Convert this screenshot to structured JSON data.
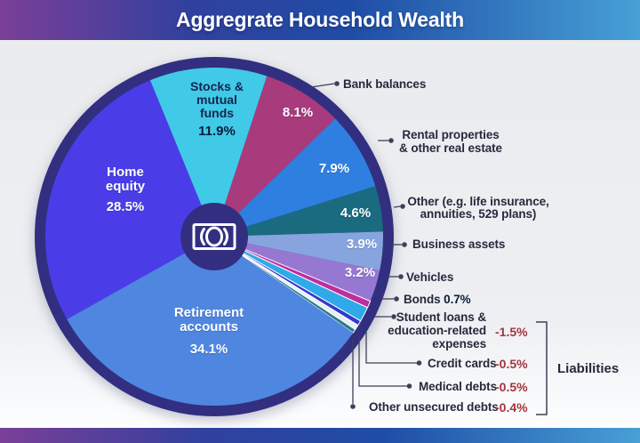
{
  "header": {
    "title": "Aggregrate Household Wealth"
  },
  "theme": {
    "css_vars": {
      "header-g1": "#7b3f97",
      "header-g2": "#31409e",
      "header-g3": "#1f4da6",
      "header-g4": "#47a0d6",
      "ring": "#322f80",
      "text-dark": "#252a3d",
      "neg": "#a2343e",
      "leader": "#3a4059"
    }
  },
  "chart_data": {
    "type": "pie",
    "title": "Aggregrate Household Wealth",
    "start_angle_deg": -22.3,
    "legend_position": "callouts-right",
    "slices": [
      {
        "label": "Stocks & mutual funds",
        "value": 11.9,
        "display": "11.9%",
        "color": "#41c9e8",
        "liability": false
      },
      {
        "label": "Bank balances",
        "value": 8.1,
        "display": "8.1%",
        "color": "#a83b7c",
        "liability": false
      },
      {
        "label": "Rental properties & other real estate",
        "value": 7.9,
        "display": "7.9%",
        "color": "#2e7fe0",
        "liability": false
      },
      {
        "label": "Other (e.g. life insurance, annuities, 529 plans)",
        "value": 4.6,
        "display": "4.6%",
        "color": "#1a6b80",
        "liability": false
      },
      {
        "label": "Business assets",
        "value": 3.9,
        "display": "3.9%",
        "color": "#87a4de",
        "liability": false
      },
      {
        "label": "Vehicles",
        "value": 3.2,
        "display": "3.2%",
        "color": "#9678d2",
        "liability": false
      },
      {
        "label": "Bonds",
        "value": 0.7,
        "display": "0.7%",
        "color": "#be2f9e",
        "liability": false
      },
      {
        "label": "Student loans & education-related expenses",
        "value": 1.5,
        "display": "-1.5%",
        "color": "#2fa9e8",
        "liability": true
      },
      {
        "label": "Credit cards",
        "value": 0.5,
        "display": "-0.5%",
        "color": "#3138ce",
        "liability": true
      },
      {
        "label": "Medical debts",
        "value": 0.5,
        "display": "-0.5%",
        "color": "#e9eef5",
        "liability": true
      },
      {
        "label": "Other unsecured debts",
        "value": 0.4,
        "display": "-0.4%",
        "color": "#2a7e8c",
        "liability": true
      },
      {
        "label": "Retirement accounts",
        "value": 34.1,
        "display": "34.1%",
        "color": "#4f86e0",
        "liability": false
      },
      {
        "label": "Home equity",
        "value": 28.5,
        "display": "28.5%",
        "color": "#4a3de8",
        "liability": false
      }
    ],
    "liabilities_group_label": "Liabilities"
  },
  "pie_labels": {
    "stocks": "Stocks &\nmutual\nfunds",
    "stocks_pct": "11.9%",
    "home": "Home\nequity",
    "home_pct": "28.5%",
    "retirement": "Retirement\naccounts",
    "retirement_pct": "34.1%",
    "pct_bank": "8.1%",
    "pct_rental": "7.9%",
    "pct_other": "4.6%",
    "pct_business": "3.9%",
    "pct_vehicles": "3.2%"
  },
  "callouts": {
    "bank": "Bank balances",
    "rental": "Rental properties\n& other real estate",
    "other": "Other (e.g. life insurance,\nannuities, 529 plans)",
    "business": "Business assets",
    "vehicles": "Vehicles",
    "bonds": "Bonds",
    "bonds_pct": "0.7%",
    "student": "Student loans &\neducation-related\nexpenses",
    "student_pct": "-1.5%",
    "credit": "Credit cards",
    "credit_pct": "-0.5%",
    "medical": "Medical debts",
    "medical_pct": "-0.5%",
    "other_unsecured": "Other unsecured debts",
    "other_unsecured_pct": "-0.4%",
    "liabilities": "Liabilities"
  }
}
